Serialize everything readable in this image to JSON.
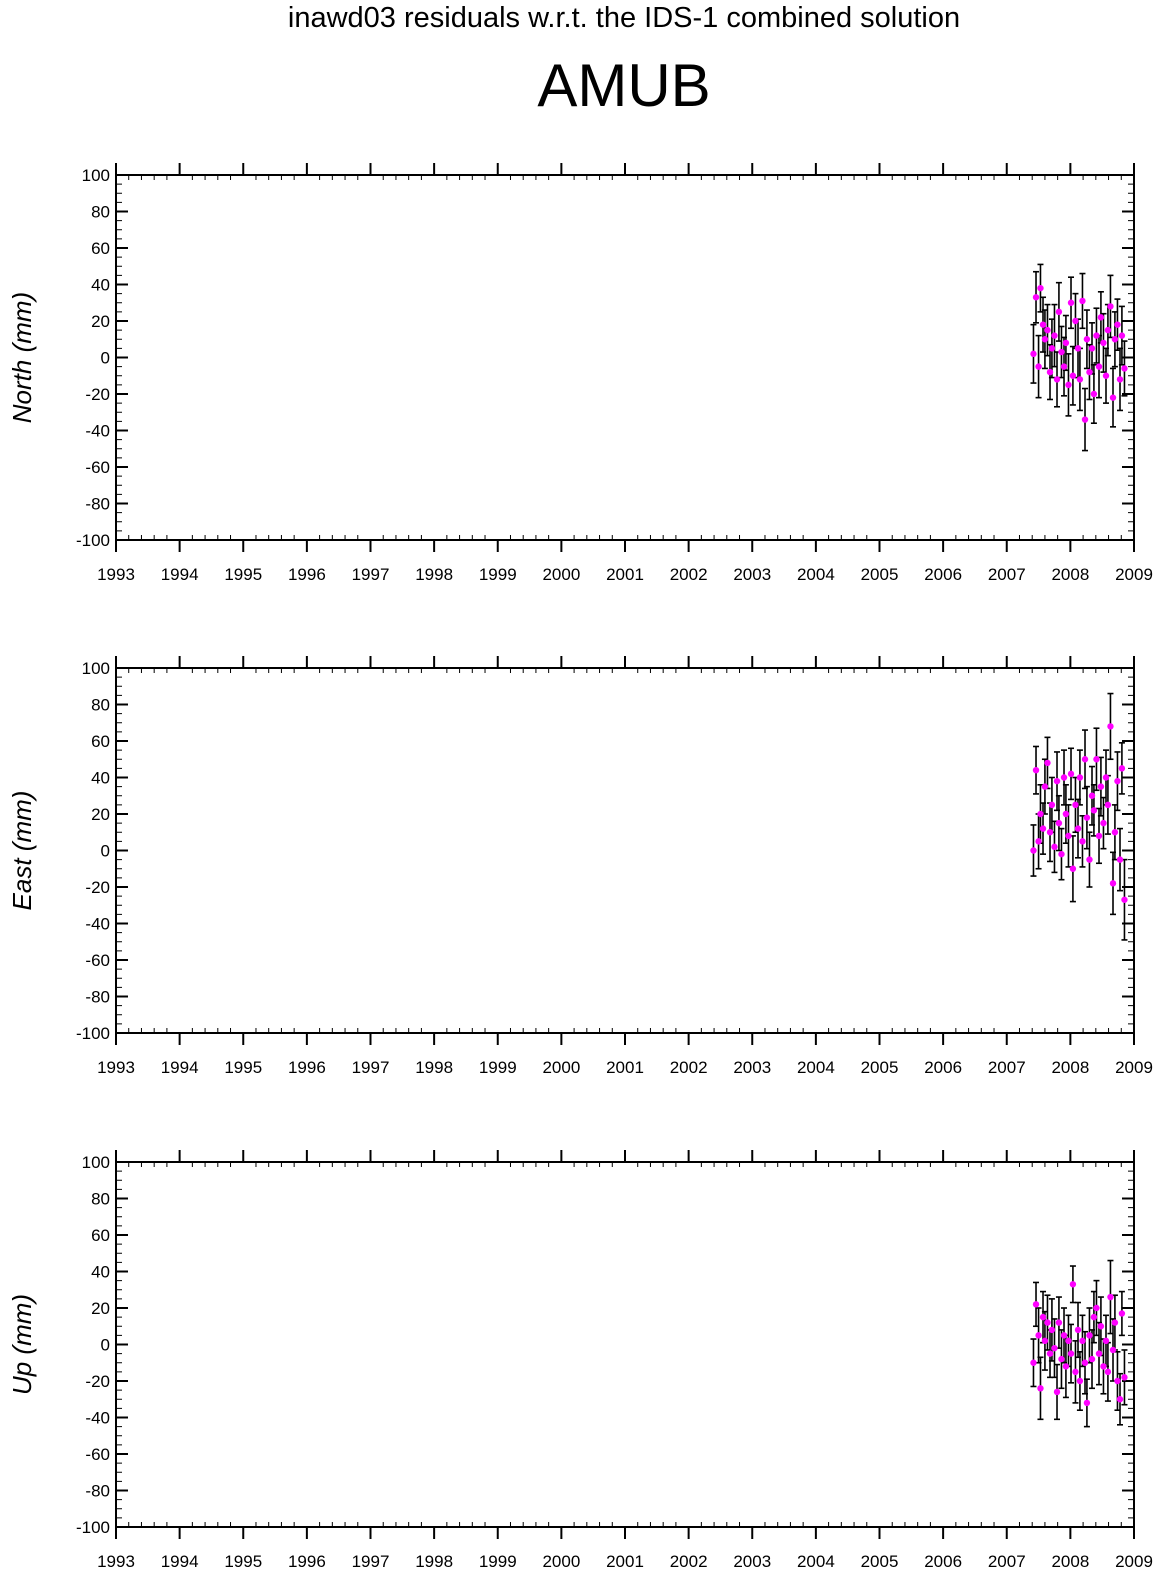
{
  "header": {
    "subtitle": "inawd03 residuals w.r.t. the IDS-1 combined solution",
    "title": "AMUB"
  },
  "colors": {
    "points": "#ff00ff",
    "error_bars": "#000000",
    "axes": "#000000"
  },
  "chart_data": [
    {
      "type": "scatter",
      "ylabel": "North (mm)",
      "xlabel": "",
      "xlim": [
        1993,
        2009
      ],
      "ylim": [
        -100,
        100
      ],
      "x_ticks": [
        "1993",
        "1994",
        "1995",
        "1996",
        "1997",
        "1998",
        "1999",
        "2000",
        "2001",
        "2002",
        "2003",
        "2004",
        "2005",
        "2006",
        "2007",
        "2008",
        "2009"
      ],
      "y_ticks": [
        "100",
        "80",
        "60",
        "40",
        "20",
        "0",
        "-20",
        "-40",
        "-60",
        "-80",
        "-100"
      ],
      "grid": false,
      "marker_color": "#ff00ff",
      "error_bar_color": "#000000",
      "series": [
        {
          "x": [
            2007.42,
            2007.46,
            2007.5,
            2007.53,
            2007.57,
            2007.6,
            2007.64,
            2007.68,
            2007.71,
            2007.75,
            2007.79,
            2007.82,
            2007.86,
            2007.9,
            2007.93,
            2007.97,
            2008.01,
            2008.04,
            2008.08,
            2008.12,
            2008.15,
            2008.19,
            2008.23,
            2008.26,
            2008.3,
            2008.34,
            2008.37,
            2008.41,
            2008.45,
            2008.48,
            2008.52,
            2008.56,
            2008.59,
            2008.63,
            2008.67,
            2008.7,
            2008.74,
            2008.78,
            2008.81,
            2008.85
          ],
          "y": [
            2,
            33,
            -5,
            38,
            18,
            10,
            15,
            -8,
            5,
            12,
            -12,
            25,
            3,
            -5,
            8,
            -15,
            30,
            -10,
            20,
            5,
            -12,
            31,
            -34,
            10,
            -8,
            5,
            -20,
            12,
            -5,
            22,
            8,
            -10,
            15,
            28,
            -22,
            10,
            18,
            -12,
            12,
            -6
          ],
          "error": [
            16,
            14,
            17,
            13,
            15,
            16,
            14,
            15,
            16,
            17,
            15,
            16,
            14,
            16,
            15,
            17,
            14,
            16,
            15,
            16,
            17,
            15,
            17,
            16,
            15,
            14,
            16,
            15,
            17,
            14,
            16,
            15,
            14,
            17,
            16,
            15,
            14,
            17,
            16,
            15
          ]
        }
      ]
    },
    {
      "type": "scatter",
      "ylabel": "East (mm)",
      "xlabel": "",
      "xlim": [
        1993,
        2009
      ],
      "ylim": [
        -100,
        100
      ],
      "x_ticks": [
        "1993",
        "1994",
        "1995",
        "1996",
        "1997",
        "1998",
        "1999",
        "2000",
        "2001",
        "2002",
        "2003",
        "2004",
        "2005",
        "2006",
        "2007",
        "2008",
        "2009"
      ],
      "y_ticks": [
        "100",
        "80",
        "60",
        "40",
        "20",
        "0",
        "-20",
        "-40",
        "-60",
        "-80",
        "-100"
      ],
      "grid": false,
      "marker_color": "#ff00ff",
      "error_bar_color": "#000000",
      "series": [
        {
          "x": [
            2007.42,
            2007.46,
            2007.5,
            2007.53,
            2007.57,
            2007.6,
            2007.64,
            2007.68,
            2007.71,
            2007.75,
            2007.79,
            2007.82,
            2007.86,
            2007.9,
            2007.93,
            2007.97,
            2008.01,
            2008.04,
            2008.08,
            2008.12,
            2008.15,
            2008.19,
            2008.23,
            2008.26,
            2008.3,
            2008.34,
            2008.37,
            2008.41,
            2008.45,
            2008.48,
            2008.52,
            2008.56,
            2008.59,
            2008.63,
            2008.67,
            2008.7,
            2008.74,
            2008.78,
            2008.81,
            2008.85
          ],
          "y": [
            0,
            44,
            5,
            20,
            12,
            35,
            48,
            10,
            25,
            2,
            38,
            15,
            -2,
            40,
            20,
            8,
            42,
            -10,
            25,
            12,
            40,
            5,
            50,
            18,
            -5,
            30,
            22,
            50,
            8,
            35,
            15,
            40,
            25,
            68,
            -18,
            10,
            38,
            -5,
            45,
            -27
          ],
          "error": [
            14,
            13,
            15,
            16,
            14,
            15,
            14,
            16,
            15,
            14,
            16,
            15,
            14,
            15,
            16,
            17,
            14,
            18,
            15,
            16,
            15,
            14,
            16,
            17,
            15,
            16,
            14,
            17,
            15,
            16,
            14,
            15,
            16,
            18,
            17,
            15,
            16,
            17,
            14,
            22
          ]
        }
      ]
    },
    {
      "type": "scatter",
      "ylabel": "Up (mm)",
      "xlabel": "",
      "xlim": [
        1993,
        2009
      ],
      "ylim": [
        -100,
        100
      ],
      "x_ticks": [
        "1993",
        "1994",
        "1995",
        "1996",
        "1997",
        "1998",
        "1999",
        "2000",
        "2001",
        "2002",
        "2003",
        "2004",
        "2005",
        "2006",
        "2007",
        "2008",
        "2009"
      ],
      "y_ticks": [
        "100",
        "80",
        "60",
        "40",
        "20",
        "0",
        "-20",
        "-40",
        "-60",
        "-80",
        "-100"
      ],
      "grid": false,
      "marker_color": "#ff00ff",
      "error_bar_color": "#000000",
      "series": [
        {
          "x": [
            2007.42,
            2007.46,
            2007.5,
            2007.53,
            2007.57,
            2007.6,
            2007.64,
            2007.68,
            2007.71,
            2007.75,
            2007.79,
            2007.82,
            2007.86,
            2007.9,
            2007.93,
            2007.97,
            2008.01,
            2008.04,
            2008.08,
            2008.12,
            2008.15,
            2008.19,
            2008.23,
            2008.26,
            2008.3,
            2008.34,
            2008.37,
            2008.41,
            2008.45,
            2008.48,
            2008.52,
            2008.56,
            2008.59,
            2008.63,
            2008.67,
            2008.7,
            2008.74,
            2008.78,
            2008.81,
            2008.85
          ],
          "y": [
            -10,
            22,
            5,
            -24,
            15,
            2,
            12,
            -5,
            8,
            -2,
            -26,
            12,
            -8,
            5,
            -12,
            2,
            -5,
            33,
            -15,
            8,
            -20,
            2,
            -10,
            -32,
            5,
            -8,
            15,
            20,
            -5,
            10,
            -12,
            2,
            -15,
            26,
            -3,
            12,
            -20,
            -30,
            17,
            -18
          ],
          "error": [
            13,
            12,
            15,
            17,
            14,
            16,
            15,
            13,
            17,
            16,
            15,
            14,
            16,
            15,
            17,
            14,
            16,
            10,
            17,
            15,
            16,
            14,
            17,
            13,
            15,
            16,
            14,
            15,
            17,
            16,
            15,
            14,
            16,
            20,
            17,
            15,
            16,
            14,
            12,
            15
          ]
        }
      ]
    }
  ]
}
